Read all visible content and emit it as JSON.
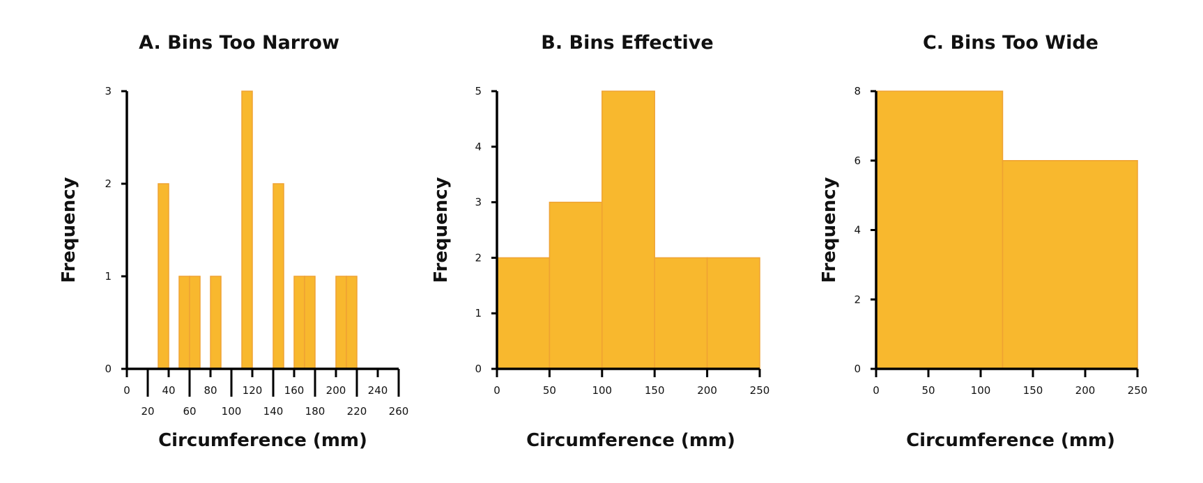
{
  "colors": {
    "bar_fill": "#F8B82E",
    "bar_edge": "#EFA232",
    "axis": "#000000"
  },
  "chart_data": [
    {
      "type": "bar",
      "title": "A. Bins Too Narrow",
      "xlabel": "Circumference (mm)",
      "ylabel": "Frequency",
      "xlim": [
        0,
        260
      ],
      "ylim": [
        0,
        3
      ],
      "xticks": [
        0,
        20,
        40,
        60,
        80,
        100,
        120,
        140,
        160,
        180,
        200,
        220,
        240,
        260
      ],
      "yticks": [
        0,
        1,
        2,
        3
      ],
      "bins": [
        {
          "start": 30,
          "end": 40,
          "value": 2
        },
        {
          "start": 50,
          "end": 60,
          "value": 1
        },
        {
          "start": 60,
          "end": 70,
          "value": 1
        },
        {
          "start": 80,
          "end": 90,
          "value": 1
        },
        {
          "start": 110,
          "end": 120,
          "value": 3
        },
        {
          "start": 140,
          "end": 150,
          "value": 2
        },
        {
          "start": 160,
          "end": 170,
          "value": 1
        },
        {
          "start": 170,
          "end": 180,
          "value": 1
        },
        {
          "start": 200,
          "end": 210,
          "value": 1
        },
        {
          "start": 210,
          "end": 220,
          "value": 1
        }
      ]
    },
    {
      "type": "bar",
      "title": "B. Bins Effective",
      "xlabel": "Circumference (mm)",
      "ylabel": "Frequency",
      "xlim": [
        0,
        250
      ],
      "ylim": [
        0,
        5
      ],
      "xticks": [
        0,
        50,
        100,
        150,
        200,
        250
      ],
      "yticks": [
        0,
        1,
        2,
        3,
        4,
        5
      ],
      "bins": [
        {
          "start": 0,
          "end": 50,
          "value": 2
        },
        {
          "start": 50,
          "end": 100,
          "value": 3
        },
        {
          "start": 100,
          "end": 150,
          "value": 5
        },
        {
          "start": 150,
          "end": 200,
          "value": 2
        },
        {
          "start": 200,
          "end": 250,
          "value": 2
        }
      ]
    },
    {
      "type": "bar",
      "title": "C. Bins Too Wide",
      "xlabel": "Circumference (mm)",
      "ylabel": "Frequency",
      "xlim": [
        0,
        250
      ],
      "ylim": [
        0,
        8
      ],
      "xticks": [
        0,
        50,
        100,
        150,
        200,
        250
      ],
      "yticks": [
        0,
        2,
        4,
        6,
        8
      ],
      "bins": [
        {
          "start": 0,
          "end": 121,
          "value": 8
        },
        {
          "start": 121,
          "end": 250,
          "value": 6
        }
      ]
    }
  ]
}
